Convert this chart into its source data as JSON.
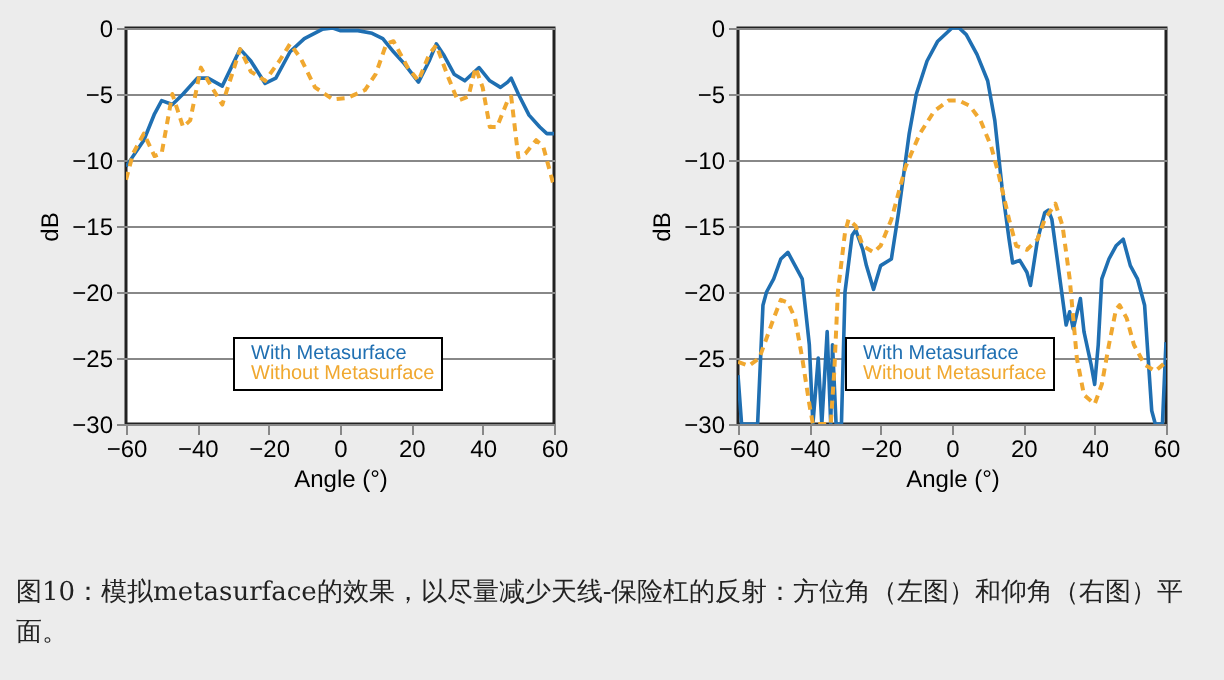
{
  "chart_data": [
    {
      "type": "line",
      "xlabel": "Angle (°)",
      "ylabel": "dB",
      "xlim": [
        -60,
        60
      ],
      "ylim": [
        -30,
        0
      ],
      "xticks": [
        -60,
        -40,
        -20,
        0,
        20,
        40,
        60
      ],
      "yticks": [
        -30,
        -25,
        -20,
        -15,
        -10,
        -5,
        0
      ],
      "grid": "y",
      "legend": "bottom",
      "annotations": [
        "图10：模拟metasurface的效果，以尽量减少天线-保险杠的反射：方位角（左图）和仰角（右图）平面。"
      ],
      "series": [
        {
          "name": "With Metasurface",
          "color": "#1f6fb2",
          "line_style": "solid",
          "x": [
            -60,
            -55,
            -52,
            -50,
            -47,
            -44,
            -40,
            -37,
            -33,
            -28,
            -25,
            -21,
            -18,
            -14,
            -10,
            -5,
            -2,
            0,
            5,
            9,
            12,
            15,
            18,
            22,
            25,
            27,
            29,
            32,
            35,
            39,
            42,
            45,
            47,
            48,
            50,
            53,
            56,
            58,
            60
          ],
          "values": [
            -10.5,
            -8.5,
            -6.5,
            -5.5,
            -5.8,
            -5,
            -3.8,
            -3.8,
            -4.4,
            -1.6,
            -2.5,
            -4.2,
            -3.8,
            -1.8,
            -0.8,
            -0.1,
            0,
            -0.2,
            -0.2,
            -0.4,
            -0.8,
            -1.8,
            -2.7,
            -4.1,
            -2.5,
            -1.2,
            -2,
            -3.5,
            -4,
            -3,
            -4,
            -4.5,
            -4.1,
            -3.8,
            -5,
            -6.6,
            -7.5,
            -8,
            -8
          ]
        },
        {
          "name": "Without Metasurface",
          "color": "#f0a830",
          "line_style": "dashed",
          "x": [
            -60,
            -58,
            -55,
            -52,
            -50,
            -47,
            -44,
            -42,
            -39,
            -37,
            -33,
            -28,
            -25,
            -21,
            -17,
            -14,
            -11,
            -7,
            -2,
            2,
            7,
            10,
            13,
            15,
            19,
            22,
            25,
            27,
            30,
            33,
            36,
            38,
            40,
            42,
            44,
            47,
            48,
            50,
            52,
            55,
            57,
            60
          ],
          "values": [
            -11.5,
            -9.5,
            -8,
            -9.7,
            -9.5,
            -5,
            -7.5,
            -7,
            -3,
            -4,
            -5.8,
            -1.6,
            -3.3,
            -4,
            -2.5,
            -1.2,
            -2.3,
            -4.5,
            -5.4,
            -5.3,
            -4.7,
            -3.5,
            -1.2,
            -1,
            -3,
            -4,
            -2,
            -1.3,
            -3.5,
            -5.5,
            -5.2,
            -3,
            -4.5,
            -7.5,
            -7.5,
            -5.5,
            -5.2,
            -9.8,
            -9.5,
            -8.5,
            -9,
            -12
          ]
        }
      ]
    },
    {
      "type": "line",
      "xlabel": "Angle (°)",
      "ylabel": "dB",
      "xlim": [
        -60,
        60
      ],
      "ylim": [
        -30,
        0
      ],
      "xticks": [
        -60,
        -40,
        -20,
        0,
        20,
        40,
        60
      ],
      "yticks": [
        -30,
        -25,
        -20,
        -15,
        -10,
        -5,
        0
      ],
      "grid": "y",
      "legend": "bottom",
      "series": [
        {
          "name": "With Metasurface",
          "color": "#1f6fb2",
          "line_style": "solid",
          "x": [
            -60,
            -59,
            -54.5,
            -53,
            -52,
            -50,
            -48,
            -46,
            -44,
            -42,
            -40,
            -39,
            -37.5,
            -36.5,
            -35,
            -34,
            -33.5,
            -32.5,
            -31,
            -30,
            -28,
            -27,
            -25,
            -24,
            -22,
            -20,
            -17,
            -15,
            -12,
            -10,
            -7,
            -4,
            0,
            2,
            4,
            7,
            10,
            12,
            14,
            16,
            17,
            19,
            21,
            22,
            24,
            26,
            27,
            28,
            30,
            32,
            33,
            34,
            36,
            37,
            39,
            40,
            41,
            42,
            44,
            46,
            48,
            50,
            52,
            54,
            55,
            56,
            57,
            59,
            60
          ],
          "values": [
            -26.3,
            -30,
            -30,
            -21,
            -20,
            -19,
            -17.5,
            -17,
            -18,
            -19,
            -24,
            -30,
            -25,
            -30,
            -23,
            -30,
            -24,
            -30,
            -30,
            -20,
            -15.7,
            -15.3,
            -16.8,
            -18,
            -19.8,
            -18,
            -17.5,
            -14,
            -8,
            -5,
            -2.5,
            -1,
            0,
            0,
            -0.5,
            -2,
            -4,
            -7,
            -12,
            -16,
            -17.8,
            -17.6,
            -18.5,
            -19.5,
            -16,
            -14,
            -13.8,
            -14.5,
            -18.5,
            -22.5,
            -21.5,
            -22.8,
            -20.5,
            -23,
            -25.5,
            -27,
            -24,
            -19,
            -17.5,
            -16.5,
            -16,
            -18,
            -19,
            -21,
            -25,
            -29,
            -30,
            -30,
            -23.8
          ]
        },
        {
          "name": "Without Metasurface",
          "color": "#f0a830",
          "line_style": "dashed",
          "x": [
            -60,
            -57,
            -54,
            -52,
            -50,
            -48,
            -46,
            -44,
            -42,
            -40,
            -39,
            -34,
            -33,
            -32,
            -30,
            -29,
            -27,
            -25,
            -22,
            -20,
            -17,
            -13,
            -9,
            -5,
            -1,
            2,
            5,
            8,
            11,
            13,
            16,
            18,
            21,
            24,
            26,
            29,
            31,
            33,
            35,
            37,
            40,
            42,
            44,
            46,
            47,
            49,
            51,
            54,
            57,
            60
          ],
          "values": [
            -25.3,
            -25.6,
            -25,
            -23.5,
            -22,
            -20.6,
            -20.8,
            -22,
            -25,
            -28.5,
            -30,
            -30,
            -26,
            -20,
            -15.5,
            -14.5,
            -15,
            -16.5,
            -17,
            -16.5,
            -14.5,
            -10.5,
            -8,
            -6.3,
            -5.5,
            -5.5,
            -5.9,
            -7,
            -9,
            -11,
            -14.5,
            -16.5,
            -16.8,
            -16,
            -14.5,
            -13.3,
            -15,
            -19,
            -25,
            -27.8,
            -28.5,
            -27,
            -24,
            -21.3,
            -21,
            -22,
            -24,
            -25.5,
            -26,
            -25.3
          ]
        }
      ]
    }
  ]
}
